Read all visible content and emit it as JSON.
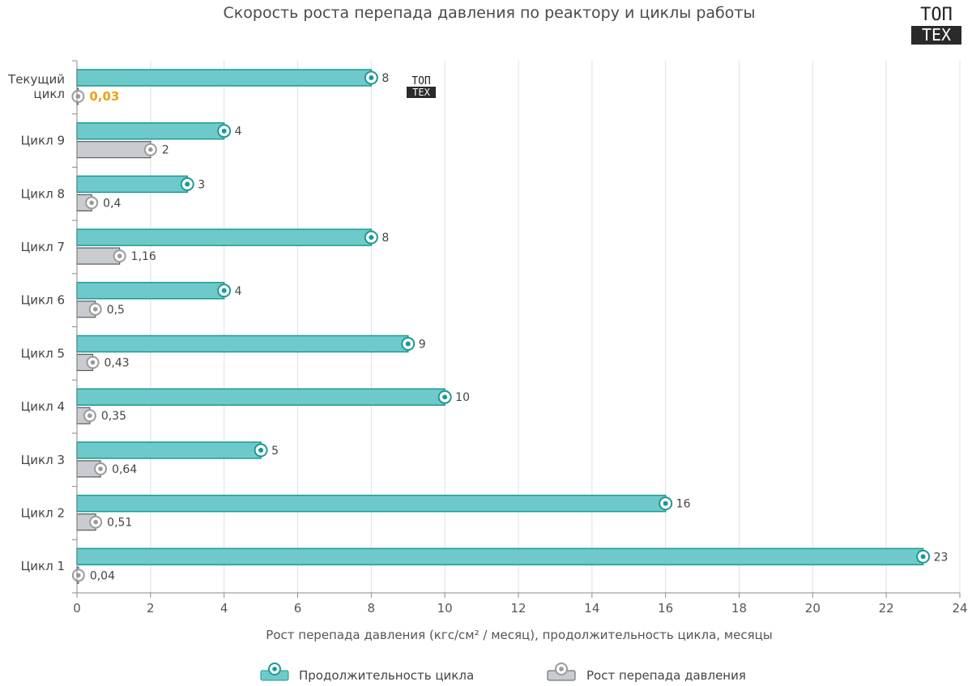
{
  "colors": {
    "duration_fill": "#6ecaca",
    "duration_stroke": "#1a9a92",
    "pressure_fill": "#c8ccd0",
    "pressure_stroke": "#5a5a5a",
    "highlight": "#f0a010",
    "grid": "#e0e0e0"
  },
  "logo": {
    "top": "ТОП",
    "bottom": "ТЕХ"
  },
  "chart_data": {
    "type": "bar",
    "orientation": "horizontal",
    "title": "Скорость роста перепада давления по реактору и циклы работы",
    "xlabel": "Рост перепада давления (кгс/см² /  месяц), продолжительность цикла, месяцы",
    "ylabel": "",
    "xlim": [
      0,
      24
    ],
    "xticks": [
      "0",
      "2",
      "4",
      "6",
      "8",
      "10",
      "12",
      "14",
      "16",
      "18",
      "20",
      "22",
      "24"
    ],
    "grid": true,
    "legend_position": "bottom",
    "categories": [
      "Текущий цикл",
      "Цикл 9",
      "Цикл 8",
      "Цикл 7",
      "Цикл 6",
      "Цикл 5",
      "Цикл 4",
      "Цикл 3",
      "Цикл 2",
      "Цикл 1"
    ],
    "series": [
      {
        "name": "Продолжительность цикла",
        "values": [
          8,
          4,
          3,
          8,
          4,
          9,
          10,
          5,
          16,
          23
        ],
        "labels": [
          "8",
          "4",
          "3",
          "8",
          "4",
          "9",
          "10",
          "5",
          "16",
          "23"
        ]
      },
      {
        "name": "Рост перепада давления",
        "values": [
          0.03,
          2,
          0.4,
          1.16,
          0.5,
          0.43,
          0.35,
          0.64,
          0.51,
          0.04
        ],
        "labels": [
          "0,03",
          "2",
          "0,4",
          "1,16",
          "0,5",
          "0,43",
          "0,35",
          "0,64",
          "0,51",
          "0,04"
        ]
      }
    ]
  }
}
